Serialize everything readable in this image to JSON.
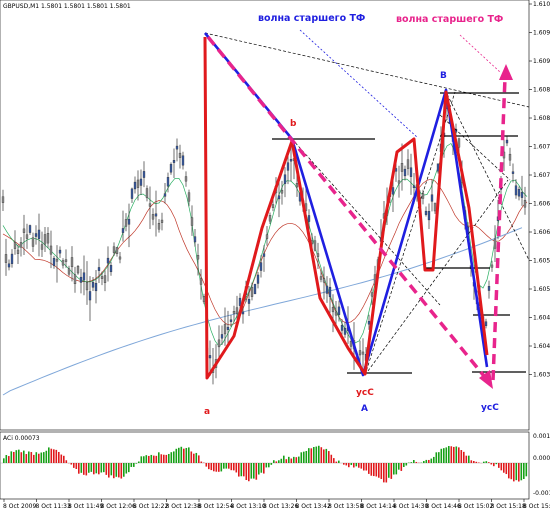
{
  "chart_data": {
    "type": "candlestick",
    "symbol_header": "GBPUSD,M1  1.5801 1.5801 1.5801 1.5801",
    "price_axis": {
      "range": [
        1.6035,
        1.61
      ],
      "ticks": [
        "1.6100",
        "1.6095",
        "1.6090",
        "1.6085",
        "1.6080",
        "1.6075",
        "1.6070",
        "1.6065",
        "1.6060",
        "1.6055",
        "1.6050",
        "1.6045",
        "1.6040",
        "1.6035"
      ]
    },
    "time_axis": {
      "ticks": [
        "8 Oct 2009",
        "8 Oct 11:33",
        "8 Oct 11:49",
        "8 Oct 12:06",
        "8 Oct 12:22",
        "8 Oct 12:38",
        "8 Oct 12:54",
        "8 Oct 13:10",
        "8 Oct 13:26",
        "8 Oct 13:42",
        "8 Oct 13:58",
        "8 Oct 14:14",
        "8 Oct 14:30",
        "8 Oct 14:46",
        "8 Oct 15:02",
        "8 Oct 15:18",
        "8 Oct 15:34"
      ]
    },
    "annotations": {
      "wave_label_blue": "волна старшего ТФ",
      "wave_label_pink": "волна старшего ТФ",
      "point_a": "a",
      "point_b": "b",
      "point_A": "A",
      "point_B": "B",
      "usC_1": "усС",
      "usC_2": "усС"
    },
    "lines": {
      "red_zigzag": [
        [
          1.6095,
          0
        ],
        [
          1.6037,
          0
        ],
        [
          1.6075,
          0
        ]
      ],
      "pink_wave": [
        {
          "from": 1.6095,
          "to": 1.6037
        },
        {
          "from": 1.6037,
          "to": 1.609
        }
      ]
    },
    "indicator": {
      "name": "AC",
      "header": "ACi 0.00073",
      "ticks": [
        "0.00144",
        "0.00000",
        "-0.00146"
      ]
    },
    "colors": {
      "red": "#e0191c",
      "blue": "#1f1fe0",
      "pink": "#e8248c",
      "bull": "#17a017",
      "bear": "#e0191c",
      "ma_red": "#c0392b",
      "ma_green": "#27ae60",
      "ma_blue": "#7fa7d9"
    }
  }
}
